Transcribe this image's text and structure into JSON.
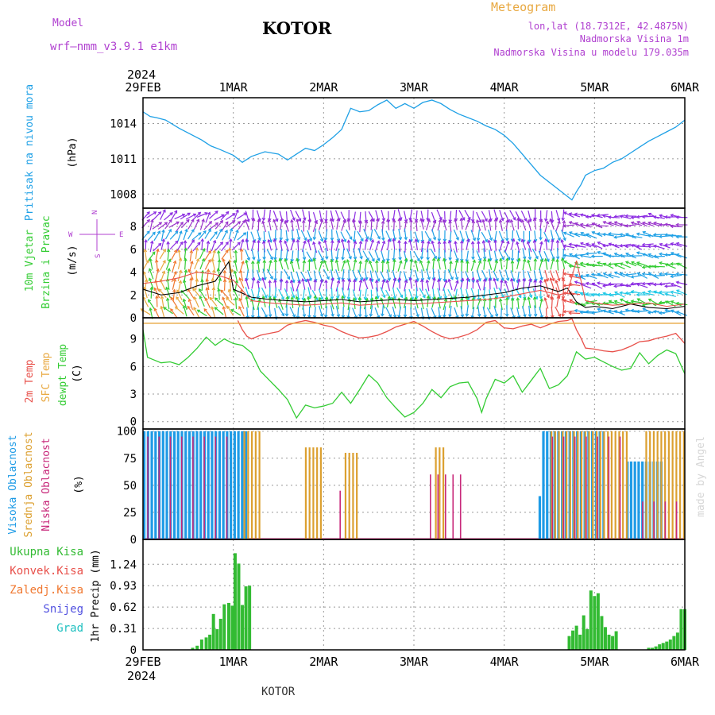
{
  "header": {
    "model_label": "Model",
    "model_name": "wrf–nmm_v3.9.1  e1km",
    "station": "KOTOR",
    "meteogram": "Meteogram",
    "lonlat": "lon,lat (18.7312E, 42.4875N)",
    "altitude": "Nadmorska Visina 1m",
    "model_altitude": "Nadmorska Visina u modelu 179.035m",
    "footer_station": "KOTOR",
    "watermark": "made by Angel"
  },
  "time_axis": {
    "start_date": "29FEB 2024",
    "year": "2024",
    "labels": [
      "29FEB",
      "1MAR",
      "2MAR",
      "3MAR",
      "4MAR",
      "5MAR",
      "6MAR"
    ]
  },
  "colors": {
    "pressure": "#1ea0e6",
    "temp": "#e8504a",
    "sfc_temp": "#e8a840",
    "dewpt": "#33cc33",
    "high_cloud": "#1e9be6",
    "mid_cloud": "#dca030",
    "low_cloud": "#c8287a",
    "total_precip": "#33bb33",
    "label_magenta": "#b040d0",
    "label_orange": "#e8a840",
    "grid": "#999999"
  },
  "chart_data": [
    {
      "type": "line",
      "id": "pressure",
      "ylabel_lines": [
        "Pritisak na nivou mora",
        "(hPa)"
      ],
      "ylim": [
        1006.8,
        1016.2
      ],
      "yticks": [
        1008,
        1011,
        1014
      ],
      "series": [
        {
          "name": "",
          "x": [
            0,
            0.08,
            0.15,
            0.25,
            0.4,
            0.55,
            0.65,
            0.75,
            0.85,
            1.0,
            1.1,
            1.2,
            1.35,
            1.5,
            1.6,
            1.7,
            1.8,
            1.9,
            2.0,
            2.1,
            2.2,
            2.3,
            2.4,
            2.5,
            2.6,
            2.7,
            2.8,
            2.9,
            3.0,
            3.1,
            3.2,
            3.3,
            3.4,
            3.5,
            3.6,
            3.7,
            3.8,
            3.9,
            4.0,
            4.1,
            4.2,
            4.3,
            4.4,
            4.5,
            4.6,
            4.7,
            4.75,
            4.8,
            4.85,
            4.9,
            5.0,
            5.1,
            5.2,
            5.3,
            5.4,
            5.5,
            5.6,
            5.7,
            5.8,
            5.9,
            6.0
          ],
          "y": [
            1015.0,
            1014.6,
            1014.5,
            1014.3,
            1013.6,
            1013.0,
            1012.6,
            1012.1,
            1011.8,
            1011.3,
            1010.7,
            1011.2,
            1011.6,
            1011.4,
            1010.9,
            1011.4,
            1011.9,
            1011.7,
            1012.2,
            1012.8,
            1013.5,
            1015.3,
            1015.0,
            1015.1,
            1015.6,
            1016.0,
            1015.3,
            1015.7,
            1015.3,
            1015.8,
            1016.0,
            1015.7,
            1015.2,
            1014.8,
            1014.5,
            1014.2,
            1013.8,
            1013.5,
            1013.0,
            1012.3,
            1011.4,
            1010.5,
            1009.6,
            1009.0,
            1008.4,
            1007.8,
            1007.5,
            1008.2,
            1008.8,
            1009.6,
            1010.0,
            1010.2,
            1010.7,
            1011.0,
            1011.5,
            1012.0,
            1012.5,
            1012.9,
            1013.3,
            1013.7,
            1014.3
          ]
        }
      ]
    },
    {
      "type": "line",
      "id": "wind",
      "ylabel_lines": [
        "10m Vjetar",
        "Brzina i Pravac",
        "(m/s)"
      ],
      "compass": [
        "N",
        "W",
        "E",
        "S"
      ],
      "ylim": [
        0,
        9.6
      ],
      "yticks": [
        0,
        2,
        4,
        6,
        8
      ],
      "arrow_rows": [
        {
          "y": 8.9,
          "color": "#8b2be2"
        },
        {
          "y": 8.1,
          "color": "#9933cc"
        },
        {
          "y": 7.2,
          "color": "#1ea0e6"
        },
        {
          "y": 6.3,
          "color": "#8b2be2"
        },
        {
          "y": 5.5,
          "color": "#1ea0e6"
        },
        {
          "y": 4.6,
          "color": "#33cc33"
        },
        {
          "y": 3.7,
          "color": "#1ea0e6"
        },
        {
          "y": 2.9,
          "color": "#8b2be2"
        },
        {
          "y": 2.1,
          "color": "#1ec8e6"
        },
        {
          "y": 1.3,
          "color": "#33cc33"
        },
        {
          "y": 0.5,
          "color": "#1ea0e6"
        }
      ],
      "series": [
        {
          "name": "",
          "x": [
            0,
            0.2,
            0.4,
            0.6,
            0.8,
            0.95,
            1.0,
            1.2,
            1.4,
            1.6,
            1.8,
            2.0,
            2.2,
            2.4,
            2.6,
            2.8,
            3.0,
            3.2,
            3.4,
            3.6,
            3.8,
            4.0,
            4.2,
            4.4,
            4.6,
            4.7,
            4.8,
            4.9,
            5.0,
            5.2,
            5.4,
            5.6,
            5.8,
            6.0
          ],
          "y": [
            2.5,
            2.0,
            2.2,
            2.8,
            3.2,
            4.9,
            2.5,
            1.8,
            1.6,
            1.5,
            1.4,
            1.5,
            1.6,
            1.4,
            1.5,
            1.6,
            1.5,
            1.6,
            1.7,
            1.8,
            2.0,
            2.2,
            2.6,
            2.8,
            2.3,
            2.6,
            1.4,
            0.9,
            1.0,
            0.8,
            1.2,
            0.9,
            0.8,
            1.0
          ]
        },
        {
          "name": "",
          "x": [
            0,
            0.2,
            0.4,
            0.6,
            0.8,
            1.0,
            1.2,
            1.4,
            1.6,
            1.8,
            2.0,
            2.2,
            2.4,
            2.6,
            2.8,
            3.0,
            3.2,
            3.4,
            3.6,
            3.8,
            4.0,
            4.2,
            4.4,
            4.6,
            4.7,
            4.8,
            4.9,
            5.0,
            5.2,
            5.4,
            5.6,
            5.8,
            6.0
          ],
          "y": [
            3.0,
            3.2,
            3.5,
            4.0,
            3.8,
            3.3,
            1.5,
            1.3,
            1.2,
            1.1,
            1.2,
            1.3,
            1.1,
            1.2,
            1.3,
            1.2,
            1.3,
            1.4,
            1.5,
            1.6,
            1.8,
            2.1,
            2.4,
            2.0,
            2.2,
            5.0,
            1.5,
            1.3,
            1.1,
            1.2,
            1.3,
            1.0,
            1.2
          ]
        }
      ]
    },
    {
      "type": "line",
      "id": "temperature",
      "ylabel_lines": [
        "2m Temp",
        "SFC Temp",
        "dewpt Temp",
        "(C)"
      ],
      "ylim": [
        -0.8,
        11.3
      ],
      "yticks": [
        0,
        3,
        6,
        9
      ],
      "series": [
        {
          "name": "2m Temp",
          "x": [
            1.05,
            1.1,
            1.15,
            1.2,
            1.3,
            1.4,
            1.5,
            1.6,
            1.7,
            1.8,
            1.9,
            2.0,
            2.1,
            2.2,
            2.3,
            2.4,
            2.5,
            2.6,
            2.7,
            2.8,
            2.9,
            3.0,
            3.1,
            3.2,
            3.3,
            3.4,
            3.5,
            3.6,
            3.7,
            3.8,
            3.9,
            4.0,
            4.1,
            4.2,
            4.3,
            4.4,
            4.5,
            4.6,
            4.7,
            4.75,
            4.8,
            4.85,
            4.9,
            5.0,
            5.1,
            5.2,
            5.3,
            5.4,
            5.5,
            5.6,
            5.7,
            5.8,
            5.9,
            6.0
          ],
          "y": [
            11.0,
            10.0,
            9.3,
            9.0,
            9.4,
            9.6,
            9.8,
            10.5,
            10.8,
            11.0,
            10.8,
            10.5,
            10.3,
            9.8,
            9.4,
            9.1,
            9.2,
            9.4,
            9.8,
            10.3,
            10.6,
            10.9,
            10.4,
            9.8,
            9.3,
            9.0,
            9.2,
            9.5,
            10.0,
            10.8,
            11.0,
            10.2,
            10.1,
            10.4,
            10.6,
            10.2,
            10.6,
            10.9,
            11.0,
            11.2,
            10.0,
            9.1,
            8.0,
            7.9,
            7.7,
            7.6,
            7.8,
            8.2,
            8.7,
            8.8,
            9.1,
            9.3,
            9.6,
            8.5
          ]
        },
        {
          "name": "SFC Temp",
          "x": [
            0,
            6.0
          ],
          "y": [
            10.7,
            10.7
          ]
        },
        {
          "name": "dewpt Temp",
          "x": [
            0,
            0.05,
            0.1,
            0.2,
            0.3,
            0.4,
            0.5,
            0.6,
            0.7,
            0.8,
            0.9,
            1.0,
            1.1,
            1.2,
            1.3,
            1.4,
            1.5,
            1.6,
            1.7,
            1.8,
            1.9,
            2.0,
            2.1,
            2.2,
            2.3,
            2.4,
            2.5,
            2.6,
            2.7,
            2.8,
            2.9,
            3.0,
            3.1,
            3.2,
            3.3,
            3.4,
            3.5,
            3.6,
            3.7,
            3.75,
            3.8,
            3.9,
            4.0,
            4.1,
            4.2,
            4.3,
            4.4,
            4.5,
            4.6,
            4.7,
            4.8,
            4.9,
            5.0,
            5.1,
            5.2,
            5.3,
            5.4,
            5.5,
            5.6,
            5.7,
            5.8,
            5.9,
            6.0
          ],
          "y": [
            10.0,
            7.0,
            6.8,
            6.4,
            6.5,
            6.2,
            7.0,
            8.0,
            9.2,
            8.3,
            9.0,
            8.5,
            8.3,
            7.5,
            5.5,
            4.5,
            3.5,
            2.4,
            0.4,
            1.8,
            1.5,
            1.7,
            2.0,
            3.2,
            2.0,
            3.5,
            5.1,
            4.2,
            2.6,
            1.5,
            0.5,
            1.0,
            2.0,
            3.5,
            2.6,
            3.8,
            4.2,
            4.3,
            2.5,
            1.0,
            2.5,
            4.6,
            4.2,
            5.0,
            3.2,
            4.5,
            5.8,
            3.6,
            4.0,
            5.0,
            7.6,
            6.8,
            7.0,
            6.5,
            6.0,
            5.6,
            5.8,
            7.5,
            6.3,
            7.2,
            7.8,
            7.4,
            5.2
          ]
        }
      ]
    },
    {
      "type": "bar",
      "id": "cloud",
      "ylabel_lines": [
        "Visoka Oblacnost",
        "Srednja Oblacnost",
        "Niska Oblacnost",
        "(%)"
      ],
      "ylim": [
        0,
        102
      ],
      "yticks": [
        0,
        25,
        50,
        75,
        100
      ],
      "series": [
        {
          "name": "Visoka Oblacnost",
          "segments": [
            {
              "x0": 0.0,
              "x1": 1.15,
              "step": 0.0417,
              "value": 100
            },
            {
              "x0": 4.38,
              "x1": 4.4,
              "step": 0.0417,
              "value": 40
            },
            {
              "x0": 4.42,
              "x1": 5.1,
              "step": 0.0417,
              "value": 100
            },
            {
              "x0": 5.35,
              "x1": 5.75,
              "step": 0.0417,
              "value": 72
            }
          ]
        },
        {
          "name": "Srednja Oblacnost",
          "segments": [
            {
              "x0": 1.1,
              "x1": 1.3,
              "step": 0.0417,
              "value": 100
            },
            {
              "x0": 1.78,
              "x1": 1.98,
              "step": 0.0417,
              "value": 85
            },
            {
              "x0": 2.22,
              "x1": 2.36,
              "step": 0.0417,
              "value": 80
            },
            {
              "x0": 3.22,
              "x1": 3.32,
              "step": 0.0417,
              "value": 85
            },
            {
              "x0": 4.5,
              "x1": 5.35,
              "step": 0.0417,
              "value": 100
            },
            {
              "x0": 5.55,
              "x1": 6.0,
              "step": 0.0417,
              "value": 100
            }
          ]
        },
        {
          "name": "Niska Oblacnost",
          "segments": [
            {
              "x0": 0.02,
              "x1": 0.95,
              "step": 0.125,
              "value": 95
            },
            {
              "x0": 2.15,
              "x1": 2.2,
              "step": 0.125,
              "value": 45
            },
            {
              "x0": 3.15,
              "x1": 3.55,
              "step": 0.0833,
              "value": 60
            },
            {
              "x0": 4.5,
              "x1": 5.3,
              "step": 0.125,
              "value": 95
            },
            {
              "x0": 5.5,
              "x1": 5.95,
              "step": 0.125,
              "value": 35
            }
          ]
        }
      ]
    },
    {
      "type": "bar",
      "id": "precip",
      "ylabel_lines": [
        "1hr Precip (mm)"
      ],
      "legend": [
        "Ukupna Kisa",
        "Konvek.Kisa",
        "Zaledj.Kisa",
        "Snijeg",
        "Grad"
      ],
      "legend_colors": [
        "#33bb33",
        "#e8504a",
        "#f07830",
        "#5050e0",
        "#20c0c0"
      ],
      "ylim": [
        0,
        1.6
      ],
      "yticks": [
        0,
        0.31,
        0.62,
        0.93,
        1.24
      ],
      "x": [
        0.55,
        0.6,
        0.65,
        0.7,
        0.74,
        0.78,
        0.82,
        0.86,
        0.9,
        0.95,
        0.99,
        1.02,
        1.06,
        1.1,
        1.14,
        1.18,
        4.72,
        4.76,
        4.8,
        4.84,
        4.88,
        4.92,
        4.96,
        5.0,
        5.04,
        5.08,
        5.12,
        5.16,
        5.2,
        5.24,
        5.6,
        5.64,
        5.68,
        5.72,
        5.76,
        5.8,
        5.84,
        5.88,
        5.92,
        5.96,
        6.0
      ],
      "values": [
        0.03,
        0.06,
        0.15,
        0.18,
        0.22,
        0.52,
        0.3,
        0.45,
        0.66,
        0.68,
        0.64,
        1.4,
        1.25,
        0.65,
        0.92,
        0.93,
        0.2,
        0.28,
        0.35,
        0.22,
        0.5,
        0.3,
        0.86,
        0.78,
        0.82,
        0.49,
        0.33,
        0.22,
        0.2,
        0.27,
        0.03,
        0.03,
        0.05,
        0.08,
        0.1,
        0.12,
        0.15,
        0.2,
        0.25,
        0.59,
        0.59
      ]
    }
  ]
}
